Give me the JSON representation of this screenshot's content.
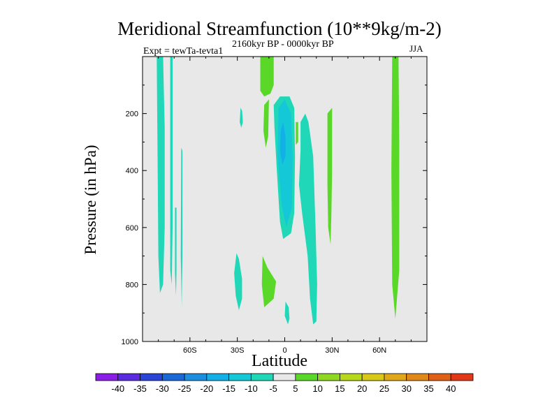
{
  "chart_data": {
    "type": "heatmap",
    "title": "Meridional Streamfunction (10**9kg/m-2)",
    "subtitle": "2160kyr BP - 0000kyr BP",
    "experiment": "Expt = tewTa-tevta1",
    "season": "JJA",
    "xlabel": "Latitude",
    "ylabel": "Pressure (in hPa)",
    "xlim": [
      -90,
      90
    ],
    "ylim": [
      1000,
      0
    ],
    "x_ticks": [
      {
        "value": -60,
        "label": "60S"
      },
      {
        "value": -30,
        "label": "30S"
      },
      {
        "value": 0,
        "label": "0"
      },
      {
        "value": 30,
        "label": "30N"
      },
      {
        "value": 60,
        "label": "60N"
      }
    ],
    "y_ticks": [
      {
        "value": 200,
        "label": "200"
      },
      {
        "value": 400,
        "label": "400"
      },
      {
        "value": 600,
        "label": "600"
      },
      {
        "value": 800,
        "label": "800"
      },
      {
        "value": 1000,
        "label": "1000"
      }
    ],
    "colorbar": {
      "levels": [
        "-40",
        "-35",
        "-30",
        "-25",
        "-20",
        "-15",
        "-10",
        "-5",
        "5",
        "10",
        "15",
        "20",
        "25",
        "30",
        "35",
        "40"
      ],
      "colors": [
        "#8a1ee6",
        "#5a2be0",
        "#2a44d8",
        "#1a68d8",
        "#1a8fe0",
        "#12b0e6",
        "#14c8d8",
        "#20d8b8",
        "#e8e8e8",
        "#5ad828",
        "#8ed820",
        "#b8d81c",
        "#d8c818",
        "#e0a818",
        "#e08818",
        "#e06018",
        "#e03818"
      ]
    },
    "background_color": "#e8e8e8",
    "regions": [
      {
        "name": "neg-band-78S",
        "value": -7,
        "color": "#20d8b8",
        "points": [
          [
            -81,
            0
          ],
          [
            -77,
            0
          ],
          [
            -76,
            250
          ],
          [
            -76,
            600
          ],
          [
            -77,
            800
          ],
          [
            -79,
            830
          ],
          [
            -80,
            700
          ],
          [
            -80.5,
            350
          ]
        ]
      },
      {
        "name": "neg-band-73S",
        "value": -7,
        "color": "#20d8b8",
        "points": [
          [
            -72.5,
            0
          ],
          [
            -71,
            0
          ],
          [
            -71,
            300
          ],
          [
            -71,
            600
          ],
          [
            -71.5,
            800
          ],
          [
            -72.5,
            750
          ],
          [
            -72.5,
            400
          ]
        ]
      },
      {
        "name": "neg-strip-70S",
        "value": -7,
        "color": "#20d8b8",
        "points": [
          [
            -69.5,
            530
          ],
          [
            -68.5,
            530
          ],
          [
            -68.5,
            750
          ],
          [
            -68.8,
            840
          ],
          [
            -69.5,
            760
          ]
        ]
      },
      {
        "name": "neg-strip-66S",
        "value": -7,
        "color": "#20d8b8",
        "points": [
          [
            -65.5,
            320
          ],
          [
            -64.8,
            330
          ],
          [
            -64.8,
            700
          ],
          [
            -65.2,
            880
          ],
          [
            -65.8,
            700
          ]
        ]
      },
      {
        "name": "neg-blob-30S-upper",
        "value": -7,
        "color": "#20d8b8",
        "points": [
          [
            -28,
            180
          ],
          [
            -27,
            190
          ],
          [
            -26.5,
            230
          ],
          [
            -27.5,
            250
          ],
          [
            -28.5,
            230
          ]
        ]
      },
      {
        "name": "neg-blob-30S-lower",
        "value": -7,
        "color": "#20d8b8",
        "points": [
          [
            -30.5,
            690
          ],
          [
            -29,
            710
          ],
          [
            -27,
            780
          ],
          [
            -27,
            850
          ],
          [
            -29,
            890
          ],
          [
            -31,
            840
          ],
          [
            -32,
            760
          ]
        ]
      },
      {
        "name": "neg-cell-equator",
        "value": -10,
        "color": "#20d8b8",
        "points": [
          [
            -7,
            170
          ],
          [
            -3,
            140
          ],
          [
            3,
            140
          ],
          [
            6,
            180
          ],
          [
            6.5,
            350
          ],
          [
            6,
            550
          ],
          [
            4,
            620
          ],
          [
            -1,
            640
          ],
          [
            -3,
            580
          ],
          [
            -5,
            400
          ],
          [
            -6.5,
            250
          ]
        ]
      },
      {
        "name": "neg-cell-core",
        "value": -15,
        "color": "#14c8d8",
        "points": [
          [
            -4,
            180
          ],
          [
            0,
            150
          ],
          [
            4,
            200
          ],
          [
            5,
            350
          ],
          [
            4.5,
            530
          ],
          [
            1,
            600
          ],
          [
            -2,
            520
          ],
          [
            -4.5,
            350
          ]
        ]
      },
      {
        "name": "neg-cell-inner",
        "value": -17,
        "color": "#12b0e6",
        "points": [
          [
            -2.5,
            260
          ],
          [
            -1,
            230
          ],
          [
            0.5,
            280
          ],
          [
            0.5,
            350
          ],
          [
            -1.5,
            380
          ],
          [
            -3,
            330
          ]
        ]
      },
      {
        "name": "neg-tongue-12N",
        "value": -7,
        "color": "#20d8b8",
        "points": [
          [
            10,
            230
          ],
          [
            13,
            200
          ],
          [
            15,
            230
          ],
          [
            18,
            350
          ],
          [
            19.5,
            600
          ],
          [
            20.5,
            800
          ],
          [
            20,
            930
          ],
          [
            18,
            940
          ],
          [
            16,
            850
          ],
          [
            14.5,
            700
          ],
          [
            11,
            550
          ],
          [
            9,
            450
          ],
          [
            10,
            330
          ]
        ]
      },
      {
        "name": "neg-blob-equator-bottom",
        "value": -7,
        "color": "#20d8b8",
        "points": [
          [
            0.5,
            860
          ],
          [
            2.5,
            880
          ],
          [
            3,
            920
          ],
          [
            2,
            940
          ],
          [
            0,
            910
          ]
        ]
      },
      {
        "name": "pos-blob-15S-top",
        "value": 7,
        "color": "#5ad828",
        "points": [
          [
            -15.5,
            0
          ],
          [
            -7,
            0
          ],
          [
            -7,
            100
          ],
          [
            -9,
            130
          ],
          [
            -13,
            140
          ],
          [
            -15.5,
            120
          ]
        ]
      },
      {
        "name": "pos-blob-15S-mid",
        "value": 7,
        "color": "#5ad828",
        "points": [
          [
            -13,
            170
          ],
          [
            -10,
            150
          ],
          [
            -10.5,
            280
          ],
          [
            -12,
            320
          ],
          [
            -13.5,
            260
          ]
        ]
      },
      {
        "name": "pos-blob-15S-low",
        "value": 7,
        "color": "#5ad828",
        "points": [
          [
            -14,
            700
          ],
          [
            -11,
            740
          ],
          [
            -5.5,
            790
          ],
          [
            -7,
            850
          ],
          [
            -13,
            880
          ],
          [
            -14.5,
            800
          ]
        ]
      },
      {
        "name": "pos-blob-8N",
        "value": 7,
        "color": "#5ad828",
        "points": [
          [
            7,
            230
          ],
          [
            8.5,
            230
          ],
          [
            8.5,
            300
          ],
          [
            7,
            310
          ]
        ]
      },
      {
        "name": "pos-band-28N",
        "value": 7,
        "color": "#5ad828",
        "points": [
          [
            27,
            200
          ],
          [
            30,
            180
          ],
          [
            30,
            400
          ],
          [
            29.5,
            560
          ],
          [
            29,
            660
          ],
          [
            27.5,
            600
          ],
          [
            27,
            450
          ]
        ]
      },
      {
        "name": "pos-band-70N",
        "value": 7,
        "color": "#5ad828",
        "points": [
          [
            68,
            0
          ],
          [
            72,
            0
          ],
          [
            72.5,
            300
          ],
          [
            72.5,
            750
          ],
          [
            70,
            920
          ],
          [
            68,
            800
          ],
          [
            67.5,
            400
          ]
        ]
      }
    ]
  }
}
